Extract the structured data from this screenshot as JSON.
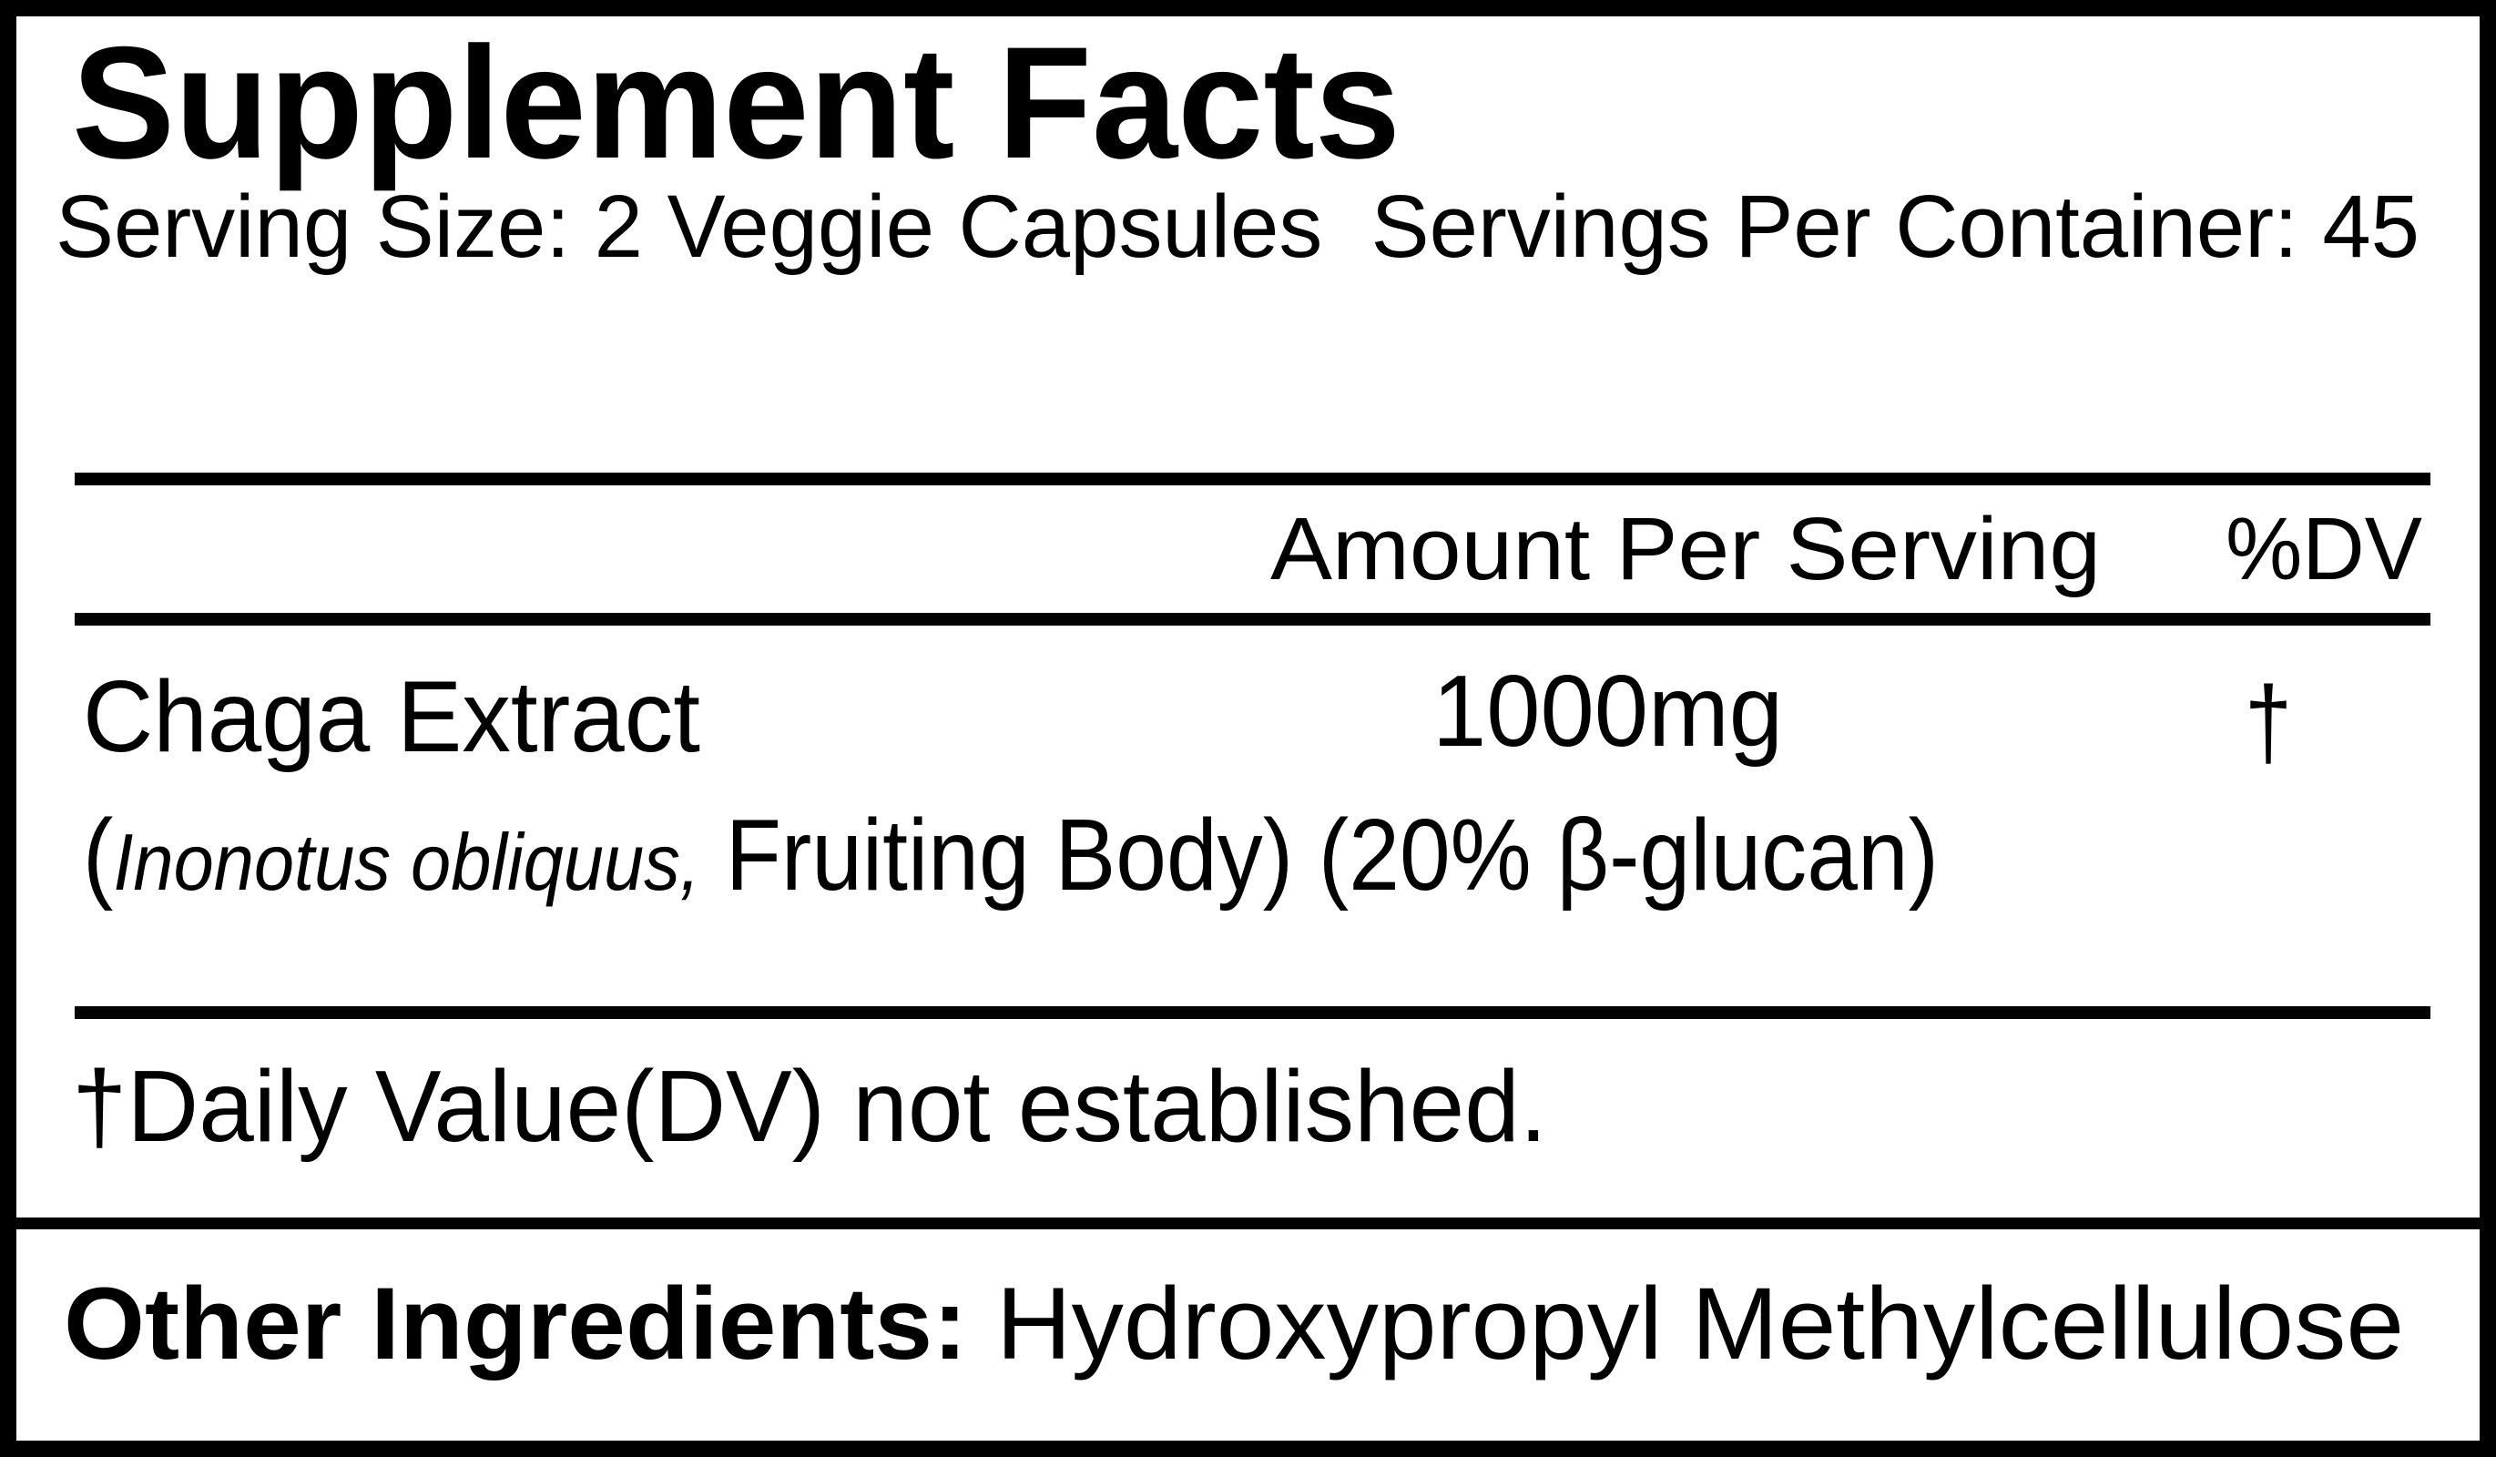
{
  "label": {
    "title": "Supplement Facts",
    "serving_size": "Serving Size: 2 Veggie Capsules",
    "servings_per_container": "Servings Per Container: 45",
    "columns": {
      "amount": "Amount Per Serving",
      "dv": "%DV"
    },
    "ingredients": [
      {
        "name": "Chaga Extract",
        "amount": "1000mg",
        "dv": "†",
        "detail_open": "(",
        "detail_italic": "Inonotus obliquus,",
        "detail_rest": " Fruiting Body) (20% β-glucan)"
      }
    ],
    "footnote": "†Daily Value(DV) not established.",
    "other_ingredients_label": "Other Ingredients:",
    "other_ingredients_value": " Hydroxypropyl Methylcellulose"
  },
  "colors": {
    "ink": "#000000",
    "background": "#ffffff"
  }
}
